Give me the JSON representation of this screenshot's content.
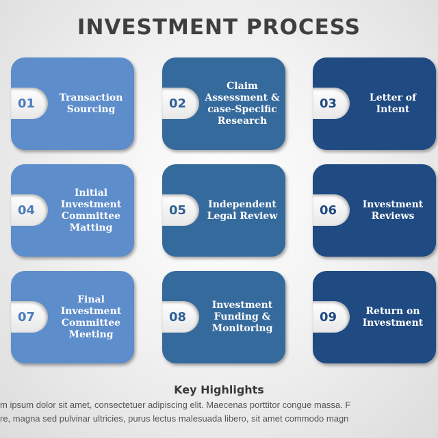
{
  "title": "INVESTMENT PROCESS",
  "colors": {
    "light": "#5d8dcb",
    "medium": "#356a9c",
    "dark": "#1f4a82"
  },
  "steps": [
    {
      "num": "01",
      "label": "Transaction Sourcing"
    },
    {
      "num": "02",
      "label": "Claim Assessment & case-Specific Research"
    },
    {
      "num": "03",
      "label": "Letter of Intent"
    },
    {
      "num": "04",
      "label": "Initial Investment Committee Matting"
    },
    {
      "num": "05",
      "label": "Independent Legal Review"
    },
    {
      "num": "06",
      "label": "Investment Reviews"
    },
    {
      "num": "07",
      "label": "Final Investment Committee Meeting"
    },
    {
      "num": "08",
      "label": "Investment Funding & Monitoring"
    },
    {
      "num": "09",
      "label": "Return on Investment"
    }
  ],
  "highlights": {
    "heading": "Key Highlights",
    "lines": [
      "m ipsum dolor sit amet, consectetuer adipiscing elit. Maecenas porttitor congue massa. F",
      "re, magna sed pulvinar ultricies, purus lectus malesuada libero, sit amet commodo magn"
    ]
  }
}
